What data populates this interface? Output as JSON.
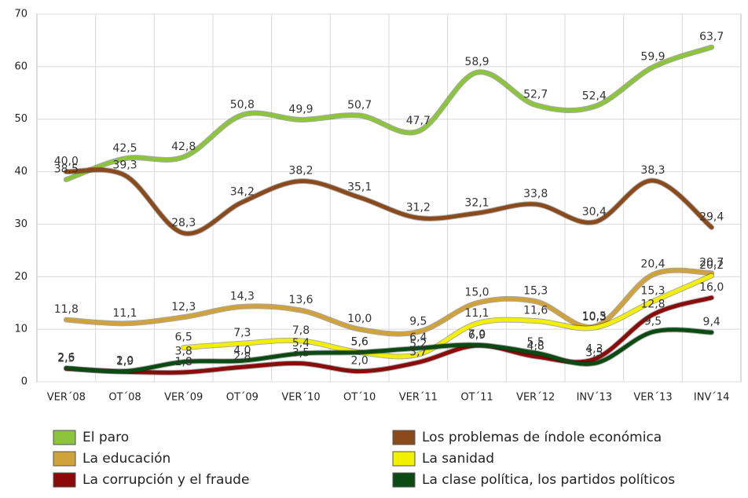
{
  "chart_data": {
    "type": "line",
    "categories": [
      "VER´08",
      "OT´08",
      "VER´09",
      "OT´09",
      "VER´10",
      "OT´10",
      "VER´11",
      "OT´11",
      "VER´12",
      "INV´13",
      "VER´13",
      "INV´14"
    ],
    "ylim": [
      0,
      70
    ],
    "yticks": [
      0,
      10,
      20,
      30,
      40,
      50,
      60,
      70
    ],
    "grid": true,
    "series": [
      {
        "name": "El paro",
        "color": "#8cc43c",
        "values": [
          38.5,
          42.5,
          42.8,
          50.8,
          49.9,
          50.7,
          47.7,
          58.9,
          52.7,
          52.4,
          59.9,
          63.7
        ],
        "value_labels": [
          "38,5",
          "42,5",
          "42,8",
          "50,8",
          "49,9",
          "50,7",
          "47,7",
          "58,9",
          "52,7",
          "52,4",
          "59,9",
          "63,7"
        ]
      },
      {
        "name": "Los problemas de índole económica",
        "color": "#8a4a1c",
        "values": [
          40.0,
          39.3,
          28.3,
          34.2,
          38.2,
          35.1,
          31.2,
          32.1,
          33.8,
          30.4,
          38.3,
          29.4
        ],
        "value_labels": [
          "40,0",
          "39,3",
          "28,3",
          "34,2",
          "38,2",
          "35,1",
          "31,2",
          "32,1",
          "33,8",
          "30,4",
          "38,3",
          "29,4"
        ]
      },
      {
        "name": "La educación",
        "color": "#d0a23a",
        "values": [
          11.8,
          11.1,
          12.3,
          14.3,
          13.6,
          10.0,
          9.5,
          15.0,
          15.3,
          10.5,
          20.4,
          20.7
        ],
        "value_labels": [
          "11,8",
          "11,1",
          "12,3",
          "14,3",
          "13,6",
          "10,0",
          "9,5",
          "15,0",
          "15,3",
          "10,5",
          "20,4",
          "20,7"
        ]
      },
      {
        "name": "La sanidad",
        "color": "#f2f000",
        "values": [
          null,
          null,
          6.5,
          7.3,
          7.8,
          5.6,
          5.2,
          11.1,
          11.6,
          10.3,
          15.3,
          20.2
        ],
        "value_labels": [
          null,
          null,
          "6,5",
          "7,3",
          "7,8",
          "5,6",
          "5,2",
          "11,1",
          "11,6",
          "10,3",
          "15,3",
          "20,2"
        ]
      },
      {
        "name": "La corrupción y el fraude",
        "color": "#8b0a0a",
        "values": [
          2.5,
          1.9,
          1.8,
          2.8,
          3.5,
          2.0,
          3.7,
          6.9,
          4.8,
          4.3,
          12.8,
          16.0
        ],
        "value_labels": [
          "2,5",
          "1,9",
          "1,8",
          "2,8",
          "3,5",
          "2,0",
          "3,7",
          "6,9",
          "4,8",
          "4,3",
          "12,8",
          "16,0"
        ]
      },
      {
        "name": "La clase política, los partidos políticos",
        "color": "#0b4a12",
        "values": [
          2.6,
          2.0,
          3.8,
          4.0,
          5.4,
          5.6,
          6.4,
          7.0,
          5.5,
          3.5,
          9.5,
          9.4
        ],
        "value_labels": [
          "2,6",
          "2,0",
          "3,8",
          "4,0",
          "5,4",
          "5,6",
          "6,4",
          "7,0",
          "5,5",
          "3,5",
          "9,5",
          "9,4"
        ]
      }
    ]
  }
}
